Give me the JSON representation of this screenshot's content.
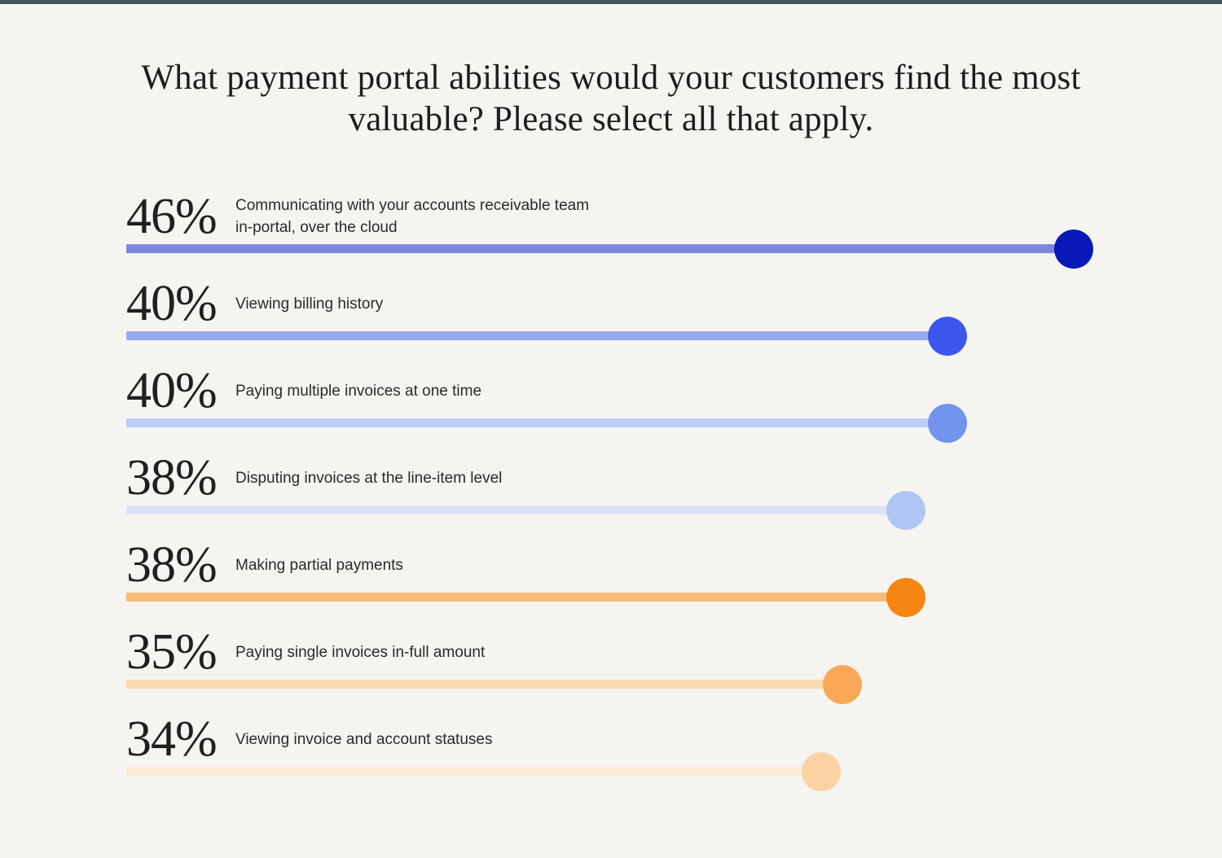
{
  "page": {
    "background_color": "#f5f4f1",
    "top_bar_color": "#3e5560"
  },
  "header": {
    "title": "What payment portal abilities would your customers find the most valuable? Please select all that apply."
  },
  "chart_data": {
    "type": "bar",
    "orientation": "horizontal",
    "unit": "%",
    "xlim": [
      0,
      48
    ],
    "grid": false,
    "legend": false,
    "categories": [
      "Communicating with your accounts receivable team in-portal, over the cloud",
      "Viewing billing history",
      "Paying multiple invoices at one time",
      "Disputing invoices at the line-item level",
      "Making partial payments",
      "Paying single invoices in-full amount",
      "Viewing invoice and account statuses"
    ],
    "values": [
      46,
      40,
      40,
      38,
      38,
      35,
      34
    ],
    "rows": [
      {
        "value": 46,
        "value_label": "46%",
        "label": "Communicating with your accounts receivable team in-portal, over the cloud",
        "dot_color": "#0918b8",
        "line_color": "#7d87dc"
      },
      {
        "value": 40,
        "value_label": "40%",
        "label": "Viewing billing history",
        "dot_color": "#3b57ee",
        "line_color": "#98a9ef"
      },
      {
        "value": 40,
        "value_label": "40%",
        "label": "Paying multiple invoices at one time",
        "dot_color": "#7394ee",
        "line_color": "#bccdf6"
      },
      {
        "value": 38,
        "value_label": "38%",
        "label": "Disputing invoices at the line-item level",
        "dot_color": "#afc5f4",
        "line_color": "#d9e3fa"
      },
      {
        "value": 38,
        "value_label": "38%",
        "label": "Making partial payments",
        "dot_color": "#f68511",
        "line_color": "#f6bd79"
      },
      {
        "value": 35,
        "value_label": "35%",
        "label": "Paying single invoices in-full amount",
        "dot_color": "#f9a857",
        "line_color": "#fad9ae"
      },
      {
        "value": 34,
        "value_label": "34%",
        "label": "Viewing invoice and account statuses",
        "dot_color": "#fbd3a2",
        "line_color": "#fcecd4"
      }
    ]
  }
}
